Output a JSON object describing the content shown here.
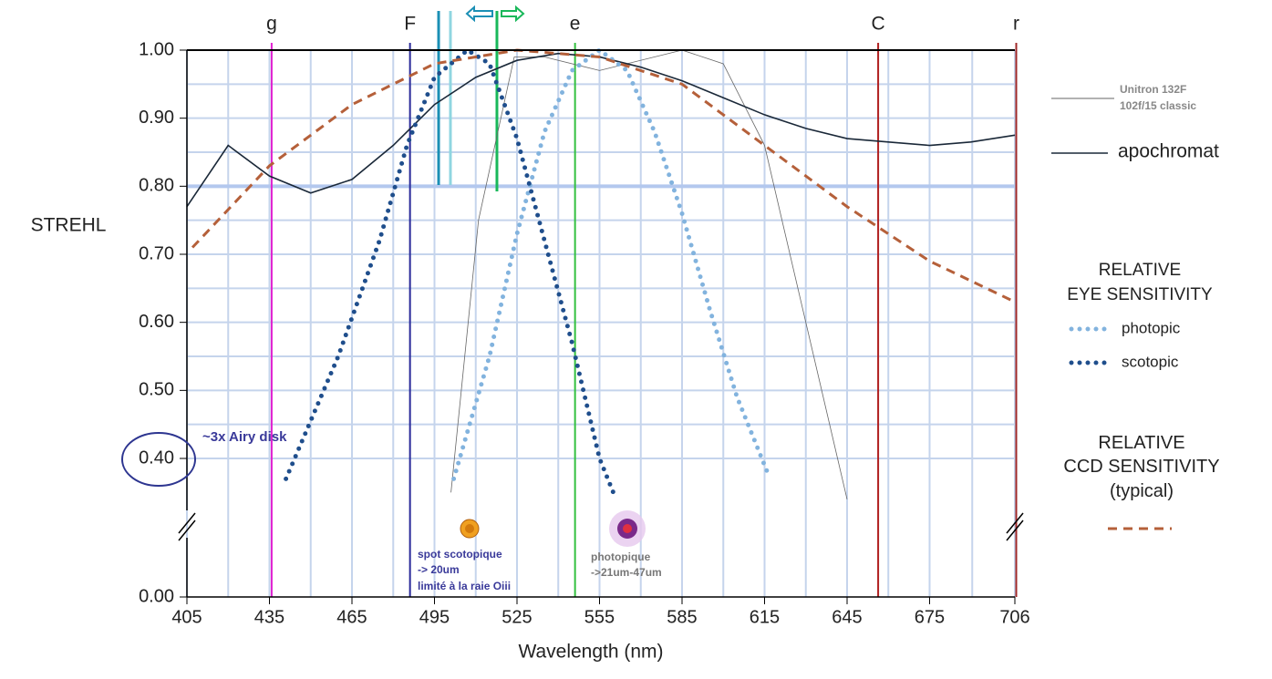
{
  "chart_data": {
    "type": "line",
    "y_label": "STREHL",
    "x_label": "Wavelength (nm)",
    "xlim": [
      405,
      706
    ],
    "xticks": [
      405,
      435,
      465,
      495,
      525,
      555,
      585,
      615,
      645,
      675,
      706
    ],
    "ylim": [
      0,
      1
    ],
    "yticks": [
      {
        "value": 1,
        "label": "1.00"
      },
      {
        "value": 0.9,
        "label": "0.90"
      },
      {
        "value": 0.8,
        "label": "0.80"
      },
      {
        "value": 0.7,
        "label": "0.70"
      },
      {
        "value": 0.6,
        "label": "0.60"
      },
      {
        "value": 0.5,
        "label": "0.50"
      },
      {
        "value": 0.4,
        "label": "0.40"
      },
      {
        "value": 0,
        "label": "0.00"
      }
    ],
    "grid": true,
    "reference_lines": [
      {
        "x": 435.8,
        "label": "g",
        "color": "#e020d0"
      },
      {
        "x": 486.1,
        "label": "F",
        "color": "#2a2a9a"
      },
      {
        "x": 496.5,
        "color": "#1b8fb5"
      },
      {
        "x": 500.8,
        "color": "#8fd6e0"
      },
      {
        "x": 517.7,
        "color": "#19b85a"
      },
      {
        "x": 546.1,
        "label": "e",
        "color": "#33c040"
      },
      {
        "x": 656.3,
        "label": "C",
        "color": "#b02020"
      },
      {
        "x": 706.5,
        "label": "r",
        "color": "#a02828"
      }
    ],
    "series": [
      {
        "name": "Unitron 132F\n102f/15 classic",
        "color": "#666666",
        "style": "thin",
        "x": [
          501,
          511,
          524,
          535,
          555,
          585,
          600,
          615,
          630,
          645
        ],
        "values": [
          0.35,
          0.75,
          0.99,
          0.99,
          0.97,
          1.0,
          0.98,
          0.86,
          0.6,
          0.34
        ]
      },
      {
        "name": "apochromat",
        "color": "#1a2838",
        "style": "solid",
        "x": [
          405,
          420,
          435,
          450,
          465,
          480,
          495,
          510,
          525,
          540,
          555,
          570,
          585,
          600,
          615,
          630,
          645,
          660,
          675,
          690,
          706
        ],
        "values": [
          0.77,
          0.86,
          0.815,
          0.79,
          0.81,
          0.86,
          0.92,
          0.96,
          0.985,
          0.995,
          0.99,
          0.975,
          0.955,
          0.93,
          0.905,
          0.885,
          0.87,
          0.865,
          0.86,
          0.865,
          0.875
        ]
      },
      {
        "name": "photopic",
        "color": "#82b3de",
        "style": "dotted",
        "x": [
          502,
          515,
          525,
          535,
          545,
          555,
          565,
          575,
          585,
          595,
          605,
          616
        ],
        "values": [
          0.37,
          0.55,
          0.73,
          0.88,
          0.97,
          1.0,
          0.97,
          0.88,
          0.76,
          0.62,
          0.49,
          0.38
        ]
      },
      {
        "name": "scotopic",
        "color": "#1f4e8c",
        "style": "dotted",
        "x": [
          441,
          460,
          475,
          485,
          495,
          507,
          515,
          525,
          535,
          545,
          555,
          560
        ],
        "values": [
          0.37,
          0.55,
          0.72,
          0.86,
          0.96,
          1.0,
          0.98,
          0.87,
          0.72,
          0.57,
          0.4,
          0.35
        ]
      },
      {
        "name": "RELATIVE\nCCD SENSITIVITY\n(typical)",
        "color": "#b5603a",
        "style": "dashed",
        "x": [
          407,
          435,
          465,
          495,
          525,
          555,
          585,
          615,
          645,
          675,
          706
        ],
        "values": [
          0.71,
          0.83,
          0.92,
          0.98,
          1.0,
          0.99,
          0.95,
          0.86,
          0.77,
          0.69,
          0.63
        ]
      }
    ],
    "legend_group_title": "RELATIVE\nEYE SENSITIVITY",
    "annotations": [
      "~3x Airy disk",
      "spot scotopique\n -> 20um\nlimité à la raie Oiii",
      "photopique\n->21um-47um"
    ]
  }
}
